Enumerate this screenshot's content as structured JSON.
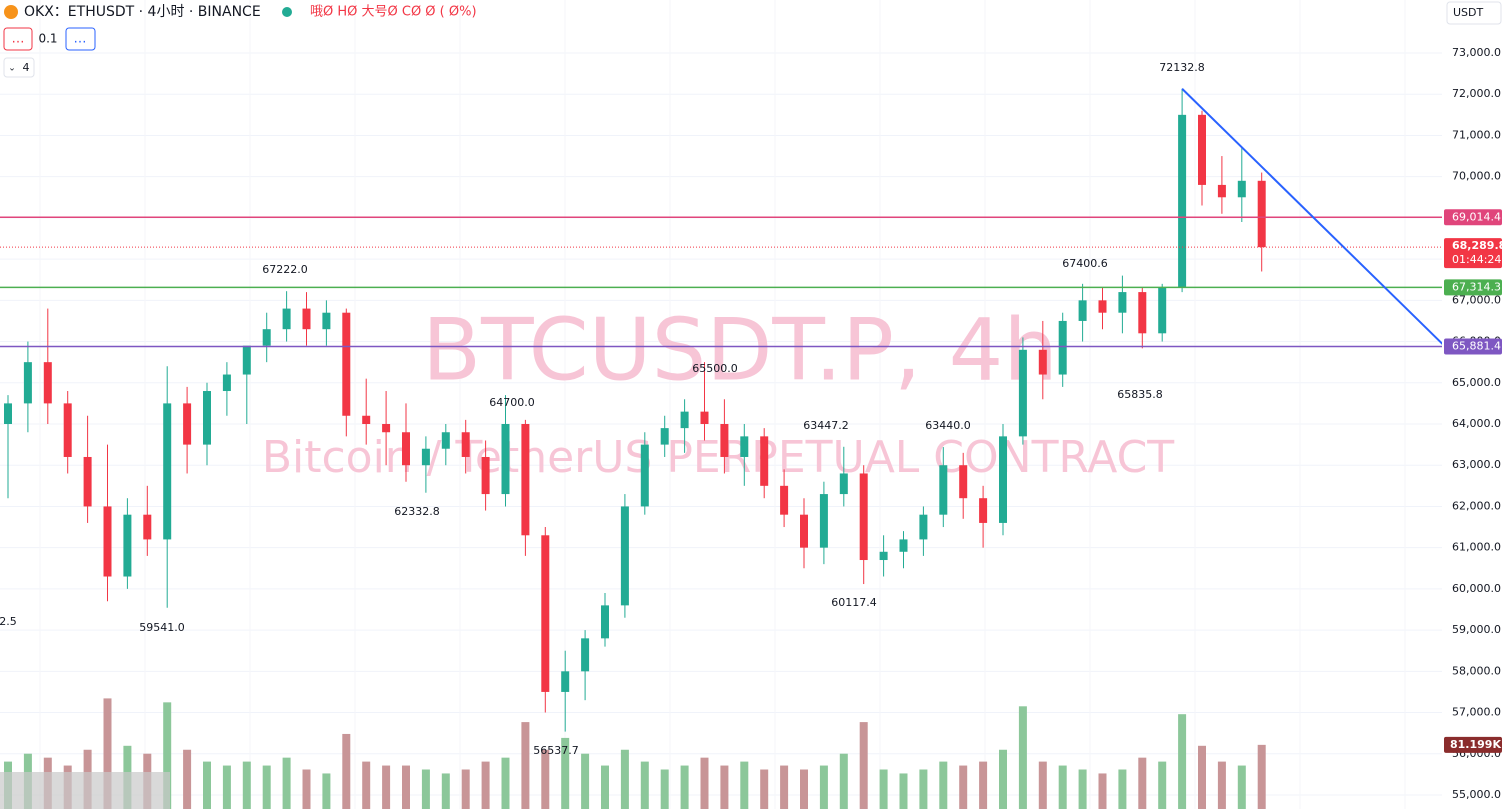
{
  "chart_data": {
    "type": "candlestick",
    "symbol_title": "OKX：ETHUSDT · 4小时 · BINANCE",
    "ohlc_legend": "哦Ø HØ 大号Ø CØ Ø ( Ø%)",
    "toolbar": {
      "left_button": "…",
      "step": "0.1",
      "right_button": "…",
      "collapse": "4"
    },
    "currency": "USDT",
    "watermark": {
      "title": "BTCUSDT.P, 4h",
      "subtitle": "Bitcoin / TetherUS PERPETUAL CONTRACT"
    },
    "up_color": "#22ab94",
    "down_color": "#f23645",
    "volume_up_color": "#8cc79a",
    "volume_down_color": "#c89597",
    "ylim": [
      54660,
      74286
    ],
    "yticks": [
      {
        "value": 55000,
        "label": "55,000.0"
      },
      {
        "value": 56000,
        "label": "56,000.0"
      },
      {
        "value": 57000,
        "label": "57,000.0"
      },
      {
        "value": 58000,
        "label": "58,000.0"
      },
      {
        "value": 59000,
        "label": "59,000.0"
      },
      {
        "value": 60000,
        "label": "60,000.0"
      },
      {
        "value": 61000,
        "label": "61,000.0"
      },
      {
        "value": 62000,
        "label": "62,000.0"
      },
      {
        "value": 63000,
        "label": "63,000.0"
      },
      {
        "value": 64000,
        "label": "64,000.0"
      },
      {
        "value": 65000,
        "label": "65,000.0"
      },
      {
        "value": 66000,
        "label": "66,000.0"
      },
      {
        "value": 67000,
        "label": "67,000.0"
      },
      {
        "value": 68000,
        "label": "68,000.0"
      },
      {
        "value": 69000,
        "label": "69,000.0"
      },
      {
        "value": 70000,
        "label": "70,000.0"
      },
      {
        "value": 71000,
        "label": "71,000.0"
      },
      {
        "value": 72000,
        "label": "72,000.0"
      },
      {
        "value": 73000,
        "label": "73,000.0"
      }
    ],
    "grid": true,
    "open": [
      64000,
      64500,
      65500,
      64500,
      63200,
      62000,
      60300,
      61800,
      61200,
      64500,
      63500,
      64800,
      65200,
      65900,
      66300,
      66800,
      66300,
      66700,
      64200,
      64000,
      63800,
      63000,
      63400,
      63800,
      63200,
      62300,
      64000,
      61300,
      57500,
      58000,
      58800,
      59600,
      62000,
      63500,
      63900,
      64300,
      64000,
      63200,
      63700,
      62500,
      61800,
      61000,
      62300,
      62800,
      60700,
      60900,
      61200,
      61800,
      63000,
      62200,
      61600,
      63700,
      65800,
      65200,
      66500,
      67000,
      66700,
      67200,
      66200,
      67300,
      71500,
      69800,
      69500,
      69900
    ],
    "high": [
      64700,
      66000,
      66800,
      64800,
      64200,
      63500,
      62200,
      62500,
      65400,
      64900,
      65000,
      65500,
      65800,
      66700,
      67222,
      67200,
      67000,
      66800,
      65100,
      64800,
      64500,
      63700,
      64000,
      64100,
      63600,
      64700,
      64100,
      61500,
      58500,
      59000,
      59900,
      62300,
      63800,
      64200,
      64600,
      65500,
      64600,
      64000,
      63900,
      62900,
      62200,
      62600,
      63447.2,
      63000,
      61300,
      61400,
      62000,
      63440,
      63300,
      62500,
      64000,
      66100,
      66500,
      66700,
      67400.6,
      67300,
      67600,
      67300,
      67400,
      72132.8,
      71600,
      70500,
      70700,
      70100
    ],
    "low": [
      62200,
      63800,
      64000,
      62800,
      61600,
      59700,
      60000,
      60800,
      59541,
      62800,
      63000,
      64200,
      64000,
      65500,
      66000,
      65900,
      65900,
      63700,
      63500,
      63000,
      62600,
      62332.8,
      63000,
      62800,
      61900,
      62000,
      60800,
      57000,
      56537.7,
      57300,
      58600,
      59300,
      61800,
      63200,
      63300,
      63600,
      62800,
      62500,
      62200,
      61500,
      60500,
      60600,
      62000,
      60117.4,
      60300,
      60500,
      60800,
      61500,
      61700,
      61000,
      61300,
      63500,
      64600,
      64900,
      66000,
      66300,
      66200,
      65835.8,
      66000,
      67200,
      69300,
      69100,
      68900,
      67700
    ],
    "close": [
      64500,
      65500,
      64500,
      63200,
      62000,
      60300,
      61800,
      61200,
      64500,
      63500,
      64800,
      65200,
      65900,
      66300,
      66800,
      66300,
      66700,
      64200,
      64000,
      63800,
      63000,
      63400,
      63800,
      63200,
      62300,
      64000,
      61300,
      57500,
      58000,
      58800,
      59600,
      62000,
      63500,
      63900,
      64300,
      64000,
      63200,
      63700,
      62500,
      61800,
      61000,
      62300,
      62800,
      60700,
      60900,
      61200,
      61800,
      63000,
      62200,
      61600,
      63700,
      65800,
      65200,
      66500,
      67000,
      66700,
      67200,
      66200,
      67300,
      71500,
      69800,
      69500,
      69900,
      68289.8
    ],
    "volume": [
      60,
      70,
      65,
      55,
      75,
      140,
      80,
      70,
      135,
      75,
      60,
      55,
      60,
      55,
      65,
      50,
      45,
      95,
      60,
      55,
      55,
      50,
      45,
      50,
      60,
      65,
      110,
      75,
      90,
      70,
      55,
      75,
      60,
      50,
      55,
      65,
      55,
      60,
      50,
      55,
      50,
      55,
      70,
      110,
      50,
      45,
      50,
      60,
      55,
      60,
      75,
      130,
      60,
      55,
      50,
      45,
      50,
      65,
      60,
      120,
      80,
      60,
      55,
      81.199
    ],
    "volume_label": "81.199K",
    "levels": [
      {
        "value": 69014.4,
        "label": "69,014.4",
        "color": "#e0457b"
      },
      {
        "value": 67314.3,
        "label": "67,314.3",
        "color": "#4caf50"
      },
      {
        "value": 65881.4,
        "label": "65,881.4",
        "color": "#7e57c2"
      }
    ],
    "last_price": {
      "value": 68289.8,
      "label": "68,289.8",
      "countdown": "01:44:24",
      "color": "#f23645"
    },
    "trendline_color": "#2962ff",
    "annotations": [
      "72132.8",
      "67400.6",
      "67222.0",
      "65500.0",
      "64700.0",
      "63447.2",
      "63440.0",
      "62332.8",
      "65835.8",
      "60117.4",
      "59541.0",
      "56537.7",
      "2.5"
    ]
  }
}
